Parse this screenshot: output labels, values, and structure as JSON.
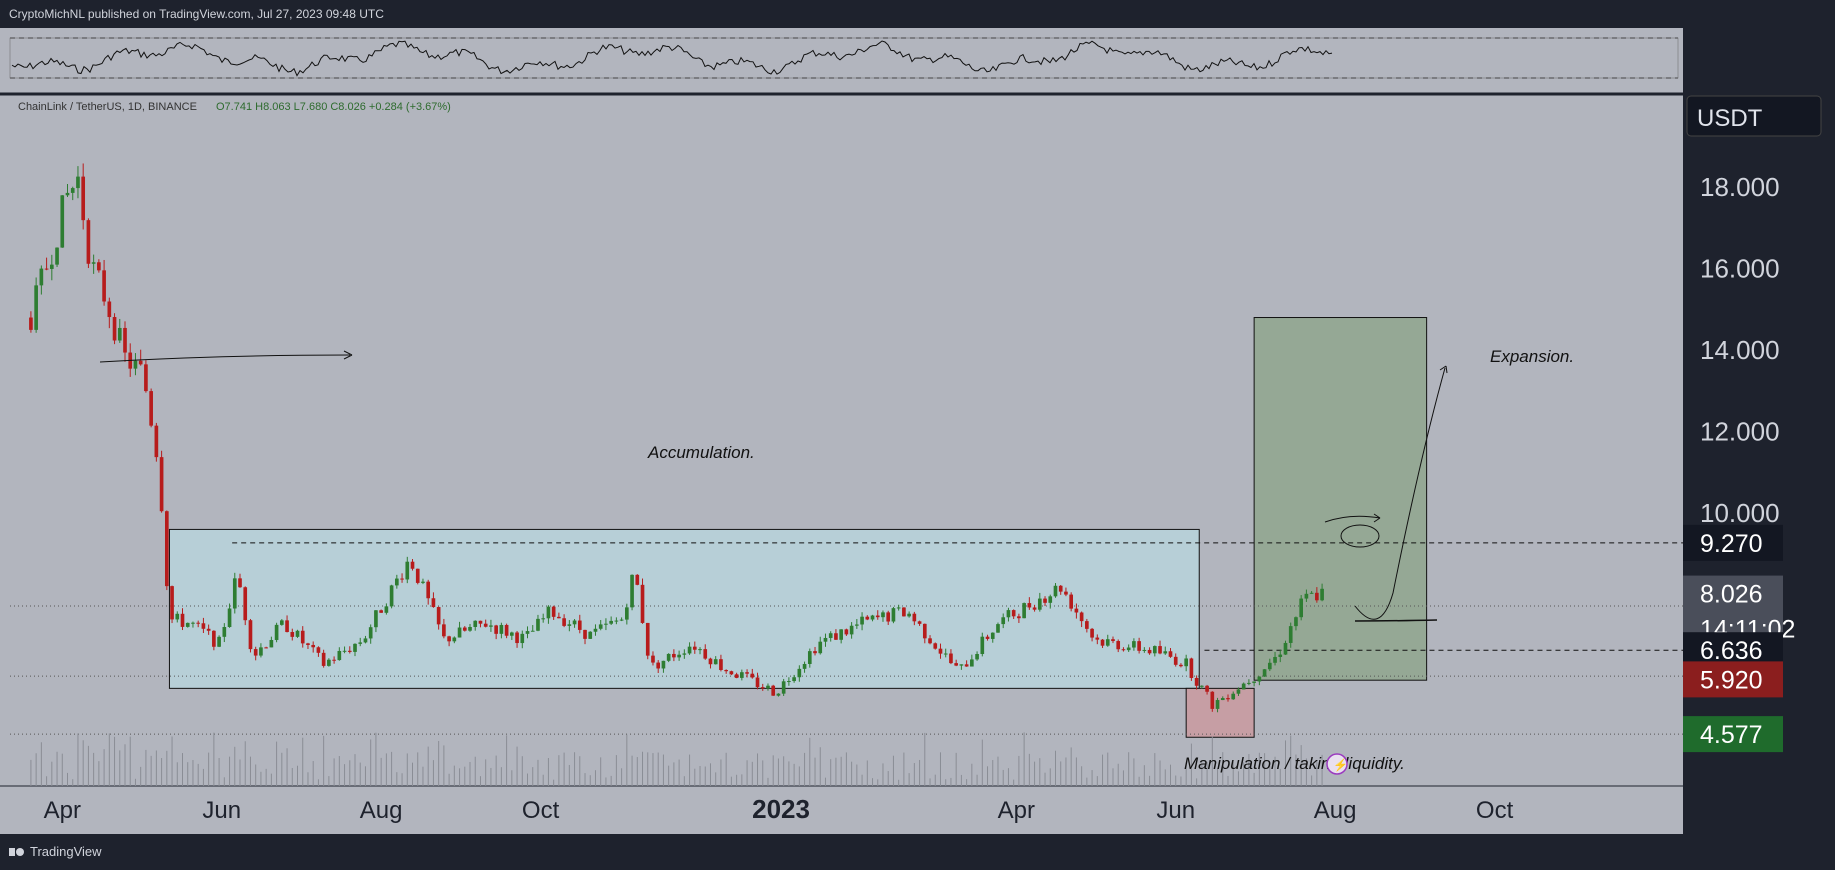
{
  "header": {
    "publish_line": "CryptoMichNL published on TradingView.com, Jul 27, 2023 09:48 UTC"
  },
  "footer": {
    "brand": "TradingView"
  },
  "chart_data": {
    "type": "candlestick",
    "symbol_line": {
      "name": "ChainLink / TetherUS, 1D, BINANCE",
      "ohlc": "O7.741  H8.063  L7.680  C8.026  +0.284 (+3.67%)"
    },
    "currency": "USDT",
    "y_ticks": [
      "18.000",
      "16.000",
      "14.000",
      "12.000",
      "10.000"
    ],
    "y_range": [
      3.5,
      19.5
    ],
    "x_ticks": [
      "Apr",
      "Jun",
      "Aug",
      "Oct",
      "2023",
      "Apr",
      "Jun",
      "Aug",
      "Oct"
    ],
    "x_tick_dates": [
      "2022-04-01",
      "2022-06-01",
      "2022-08-01",
      "2022-10-01",
      "2023-01-01",
      "2023-04-01",
      "2023-06-01",
      "2023-08-01",
      "2023-10-01"
    ],
    "price_labels": [
      {
        "value": "9.270",
        "color": "#131722"
      },
      {
        "value": "8.026",
        "color": "#4a4e5a",
        "sub": "14:11:02"
      },
      {
        "value": "6.636",
        "color": "#131722"
      },
      {
        "value": "5.920",
        "color": "#8b1e1e"
      },
      {
        "value": "4.577",
        "color": "#1f6b2c"
      }
    ],
    "annotations": [
      {
        "text": "Accumulation.",
        "zone": "accumulation",
        "y_range": [
          5.7,
          9.6
        ],
        "x_range": [
          "2022-05-12",
          "2023-06-10"
        ]
      },
      {
        "text": "Manipulation / taking liquidity.",
        "zone": "manipulation",
        "y_range": [
          4.5,
          5.7
        ],
        "x_range": [
          "2023-06-05",
          "2023-07-01"
        ]
      },
      {
        "text": "Expansion.",
        "zone": "expansion",
        "y_range": [
          5.9,
          14.8
        ],
        "x_range": [
          "2023-07-01",
          "2023-09-05"
        ]
      }
    ],
    "levels": [
      9.27,
      6.636
    ],
    "approx_closes": [
      {
        "date": "2022-03-20",
        "close": 14.8
      },
      {
        "date": "2022-03-28",
        "close": 16.5
      },
      {
        "date": "2022-04-03",
        "close": 17.8
      },
      {
        "date": "2022-04-07",
        "close": 18.2
      },
      {
        "date": "2022-04-12",
        "close": 16.1
      },
      {
        "date": "2022-04-18",
        "close": 15.2
      },
      {
        "date": "2022-04-25",
        "close": 13.8
      },
      {
        "date": "2022-05-02",
        "close": 13.4
      },
      {
        "date": "2022-05-08",
        "close": 11.2
      },
      {
        "date": "2022-05-12",
        "close": 7.4
      },
      {
        "date": "2022-05-20",
        "close": 7.3
      },
      {
        "date": "2022-05-31",
        "close": 6.8
      },
      {
        "date": "2022-06-07",
        "close": 8.5
      },
      {
        "date": "2022-06-13",
        "close": 6.5
      },
      {
        "date": "2022-06-25",
        "close": 7.3
      },
      {
        "date": "2022-07-10",
        "close": 6.3
      },
      {
        "date": "2022-07-25",
        "close": 6.9
      },
      {
        "date": "2022-08-12",
        "close": 8.9
      },
      {
        "date": "2022-08-25",
        "close": 6.9
      },
      {
        "date": "2022-09-10",
        "close": 7.3
      },
      {
        "date": "2022-09-25",
        "close": 6.9
      },
      {
        "date": "2022-10-05",
        "close": 7.6
      },
      {
        "date": "2022-10-20",
        "close": 7.0
      },
      {
        "date": "2022-11-01",
        "close": 7.4
      },
      {
        "date": "2022-11-06",
        "close": 8.6
      },
      {
        "date": "2022-11-12",
        "close": 6.2
      },
      {
        "date": "2022-11-28",
        "close": 6.8
      },
      {
        "date": "2022-12-10",
        "close": 6.2
      },
      {
        "date": "2022-12-30",
        "close": 5.6
      },
      {
        "date": "2023-01-15",
        "close": 6.8
      },
      {
        "date": "2023-02-01",
        "close": 7.3
      },
      {
        "date": "2023-02-18",
        "close": 7.6
      },
      {
        "date": "2023-03-10",
        "close": 6.1
      },
      {
        "date": "2023-03-25",
        "close": 7.3
      },
      {
        "date": "2023-04-18",
        "close": 8.2
      },
      {
        "date": "2023-05-01",
        "close": 6.9
      },
      {
        "date": "2023-05-25",
        "close": 6.6
      },
      {
        "date": "2023-06-05",
        "close": 6.3
      },
      {
        "date": "2023-06-15",
        "close": 5.3
      },
      {
        "date": "2023-07-01",
        "close": 6.0
      },
      {
        "date": "2023-07-10",
        "close": 6.5
      },
      {
        "date": "2023-07-20",
        "close": 7.9
      },
      {
        "date": "2023-07-27",
        "close": 8.026
      }
    ],
    "colors": {
      "up": "#2e7d32",
      "down": "#b71c1c",
      "background": "#b2b5be",
      "accumulation_fill": "#b7d3dc",
      "manipulation_fill": "#c99aa0",
      "expansion_fill": "#8fa68e"
    }
  }
}
